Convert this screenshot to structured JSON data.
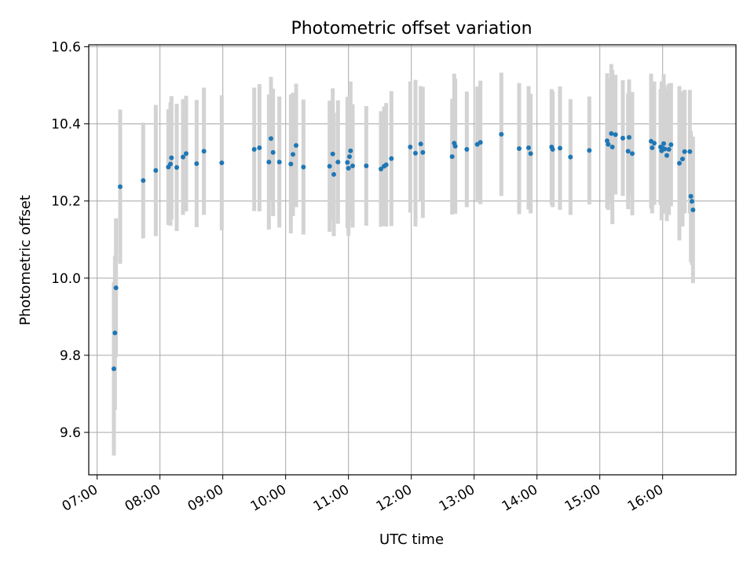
{
  "chart_data": {
    "type": "scatter",
    "title": "Photometric offset variation",
    "xlabel": "UTC time",
    "ylabel": "Photometric offset",
    "xlim": [
      "06:52",
      "17:10"
    ],
    "ylim": [
      9.49,
      10.605
    ],
    "grid": true,
    "x_tick_labels": [
      "07:00",
      "08:00",
      "09:00",
      "10:00",
      "11:00",
      "12:00",
      "13:00",
      "14:00",
      "15:00",
      "16:00"
    ],
    "y_tick_values": [
      9.6,
      9.8,
      10.0,
      10.2,
      10.4,
      10.6
    ],
    "y_tick_labels": [
      "9.6",
      "9.8",
      "10.0",
      "10.2",
      "10.4",
      "10.6"
    ],
    "marker_color": "#1f77b4",
    "errorbar_color": "#d3d3d3",
    "series": [
      {
        "x": [
          "07:16",
          "07:17",
          "07:18",
          "07:22",
          "07:44",
          "07:56",
          "08:08",
          "08:10",
          "08:11",
          "08:16",
          "08:22",
          "08:25",
          "08:35",
          "08:42",
          "08:59",
          "09:30",
          "09:35",
          "09:44",
          "09:46",
          "09:48",
          "09:54",
          "10:05",
          "10:07",
          "10:10",
          "10:17",
          "10:42",
          "10:45",
          "10:46",
          "10:50",
          "10:59",
          "11:00",
          "11:01",
          "11:02",
          "11:04",
          "11:17",
          "11:31",
          "11:34",
          "11:36",
          "11:41",
          "11:59",
          "12:04",
          "12:09",
          "12:11",
          "12:39",
          "12:41",
          "12:42",
          "12:53",
          "13:03",
          "13:06",
          "13:26",
          "13:43",
          "13:52",
          "13:54",
          "14:14",
          "14:15",
          "14:22",
          "14:32",
          "14:50",
          "15:07",
          "15:08",
          "15:11",
          "15:12",
          "15:15",
          "15:22",
          "15:27",
          "15:28",
          "15:31",
          "15:49",
          "15:50",
          "15:52",
          "15:58",
          "15:59",
          "16:00",
          "16:01",
          "16:02",
          "16:04",
          "16:06",
          "16:08",
          "16:16",
          "16:19",
          "16:21",
          "16:26",
          "16:27",
          "16:28",
          "16:29"
        ],
        "y": [
          9.765,
          9.858,
          9.975,
          10.237,
          10.253,
          10.279,
          10.288,
          10.296,
          10.312,
          10.287,
          10.314,
          10.323,
          10.297,
          10.329,
          10.299,
          10.334,
          10.338,
          10.301,
          10.362,
          10.326,
          10.301,
          10.296,
          10.321,
          10.344,
          10.288,
          10.29,
          10.322,
          10.269,
          10.301,
          10.3,
          10.285,
          10.315,
          10.33,
          10.291,
          10.291,
          10.283,
          10.29,
          10.294,
          10.31,
          10.34,
          10.324,
          10.348,
          10.326,
          10.315,
          10.35,
          10.342,
          10.334,
          10.347,
          10.352,
          10.373,
          10.336,
          10.338,
          10.323,
          10.34,
          10.334,
          10.337,
          10.314,
          10.331,
          10.356,
          10.347,
          10.375,
          10.34,
          10.372,
          10.363,
          10.329,
          10.365,
          10.323,
          10.355,
          10.338,
          10.35,
          10.34,
          10.33,
          10.337,
          10.349,
          10.335,
          10.318,
          10.334,
          10.346,
          10.298,
          10.309,
          10.328,
          10.328,
          10.212,
          10.199,
          10.177
        ],
        "yerr": [
          0.225,
          0.2,
          0.18,
          0.2,
          0.15,
          0.17,
          0.15,
          0.16,
          0.16,
          0.165,
          0.15,
          0.15,
          0.165,
          0.165,
          0.175,
          0.16,
          0.165,
          0.175,
          0.16,
          0.165,
          0.17,
          0.18,
          0.16,
          0.16,
          0.175,
          0.17,
          0.17,
          0.16,
          0.16,
          0.17,
          0.175,
          0.16,
          0.18,
          0.16,
          0.155,
          0.15,
          0.155,
          0.16,
          0.175,
          0.17,
          0.19,
          0.15,
          0.17,
          0.15,
          0.18,
          0.175,
          0.15,
          0.15,
          0.16,
          0.16,
          0.17,
          0.16,
          0.155,
          0.15,
          0.15,
          0.16,
          0.15,
          0.14,
          0.175,
          0.17,
          0.18,
          0.2,
          0.155,
          0.15,
          0.15,
          0.15,
          0.16,
          0.175,
          0.17,
          0.16,
          0.15,
          0.18,
          0.17,
          0.18,
          0.165,
          0.17,
          0.17,
          0.16,
          0.2,
          0.175,
          0.16,
          0.16,
          0.17,
          0.165,
          0.19
        ]
      }
    ]
  }
}
